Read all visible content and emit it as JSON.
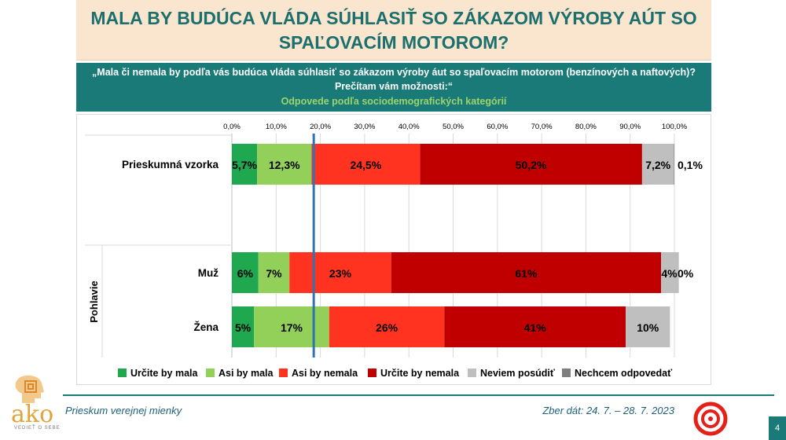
{
  "title": {
    "line1": "MALA BY BUDÚCA VLÁDA SÚHLASIŤ SO ZÁKAZOM VÝROBY AÚT SO",
    "line2": "SPAĽOVACÍM MOTOROM?"
  },
  "question": {
    "line1": "„Mala či nemala by podľa vás budúca vláda súhlasiť so zákazom výroby áut so spaľovacím motorom (benzínových a naftových)?",
    "line2": "Prečítam vám možnosti:“",
    "line3": "Odpovede podľa sociodemografických kategórií"
  },
  "colors": {
    "title_text": "#1b6f6d",
    "question_bg": "#1a7a78",
    "question_text": "#ffffff",
    "subtitle_text": "#9bd46a",
    "reference_line": "#2e75b6"
  },
  "chart_data": {
    "type": "bar",
    "orientation": "horizontal",
    "stacked": true,
    "xlim": [
      0,
      100
    ],
    "x_ticks": [
      "0,0%",
      "10,0%",
      "20,0%",
      "30,0%",
      "40,0%",
      "50,0%",
      "60,0%",
      "70,0%",
      "80,0%",
      "90,0%",
      "100,0%"
    ],
    "reference_line_value": 18.5,
    "group_label": "Pohlavie",
    "series": [
      {
        "name": "Určite by mala",
        "color": "#1fa84f"
      },
      {
        "name": "Asi by mala",
        "color": "#92d05a"
      },
      {
        "name": "Asi by nemala",
        "color": "#ff3320"
      },
      {
        "name": "Určite by nemala",
        "color": "#c00000"
      },
      {
        "name": "Neviem posúdiť",
        "color": "#bfbfbf"
      },
      {
        "name": "Nechcem odpovedať",
        "color": "#7f7f7f"
      }
    ],
    "rows": [
      {
        "category": "Prieskumná vzorka",
        "values": [
          5.7,
          12.3,
          24.5,
          50.2,
          7.2,
          0.1
        ],
        "labels": [
          "5,7%",
          "12,3%",
          "24,5%",
          "50,2%",
          "7,2%",
          "0,1%"
        ]
      },
      {
        "category": "Muž",
        "values": [
          6,
          7,
          23,
          61,
          4,
          0
        ],
        "labels": [
          "6%",
          "7%",
          "23%",
          "61%",
          "4%",
          "0%"
        ]
      },
      {
        "category": "Žena",
        "values": [
          5,
          17,
          26,
          41,
          10,
          0
        ],
        "labels": [
          "5%",
          "17%",
          "26%",
          "41%",
          "10%",
          ""
        ]
      }
    ]
  },
  "footer": {
    "left": "Prieskum verejnej mienky",
    "right": "Zber dát: 24. 7. – 28. 7. 2023",
    "page": "4"
  },
  "logo": {
    "text": "ako",
    "sub": "VEDIEŤ O SEBE"
  }
}
